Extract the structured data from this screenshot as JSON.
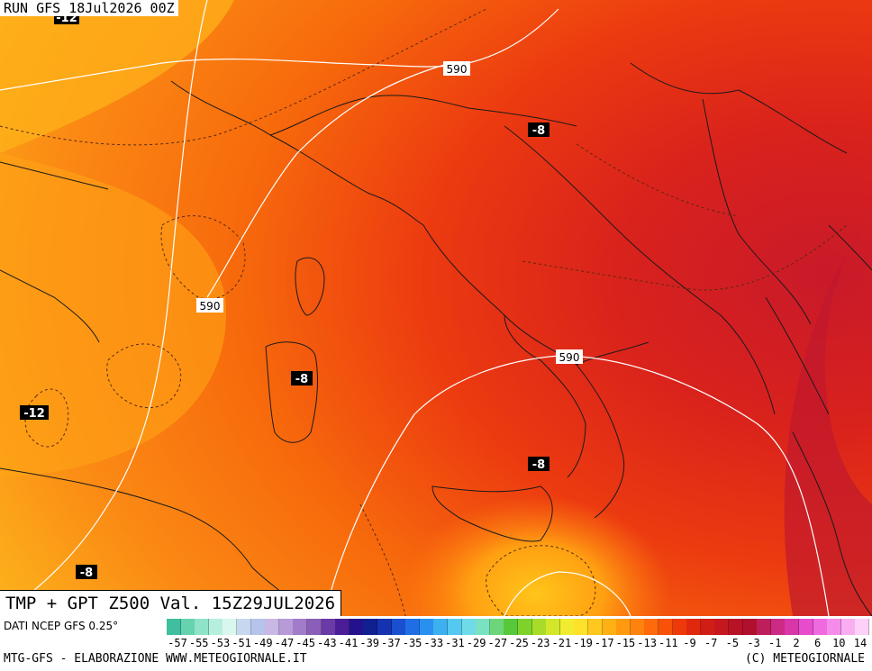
{
  "header": {
    "run_text": "RUN GFS 18Jul2026 00Z"
  },
  "title": {
    "valid_text": "TMP + GPT Z500 Val. 15Z29JUL2026"
  },
  "source": {
    "text": "DATI NCEP GFS 0.25°"
  },
  "footer": {
    "left": "MTG-GFS - ELABORAZIONE WWW.METEOGIORNALE.IT",
    "right": "(C) METEOGIORNALE"
  },
  "map_labels": {
    "geopotential": [
      {
        "text": "590",
        "place": "north-near-austria"
      },
      {
        "text": "590",
        "place": "west-sea"
      },
      {
        "text": "590",
        "place": "southern-italy"
      }
    ],
    "temperature": [
      {
        "text": "-12",
        "place": "top-left-corner"
      },
      {
        "text": "-8",
        "place": "croatian-coast"
      },
      {
        "text": "-8",
        "place": "sardinia"
      },
      {
        "text": "-12",
        "place": "algeria-coast"
      },
      {
        "text": "-8",
        "place": "sicily"
      },
      {
        "text": "-8",
        "place": "tunisia"
      }
    ]
  },
  "legend": {
    "ticks": [
      "-57",
      "-55",
      "-53",
      "-51",
      "-49",
      "-47",
      "-45",
      "-43",
      "-41",
      "-39",
      "-37",
      "-35",
      "-33",
      "-31",
      "-29",
      "-27",
      "-25",
      "-23",
      "-21",
      "-19",
      "-17",
      "-15",
      "-13",
      "-11",
      "-9",
      "-7",
      "-5",
      "-3",
      "-1",
      "2",
      "6",
      "10",
      "14"
    ],
    "colors": [
      "#3fbf9f",
      "#66d3b0",
      "#8fe3c9",
      "#b7efdf",
      "#d9f7ee",
      "#c8d7f0",
      "#b6c3ea",
      "#c9b8e6",
      "#b79ad8",
      "#a27cc8",
      "#8b5eb8",
      "#6a3aa6",
      "#4a1e96",
      "#24128c",
      "#10208f",
      "#1533b0",
      "#1a4fd0",
      "#1f6ee6",
      "#2a90f0",
      "#3cb0f0",
      "#55c8ef",
      "#6fdbe8",
      "#7ae2c0",
      "#6ed67a",
      "#57c83a",
      "#7fd22a",
      "#a9dc2a",
      "#d2e62a",
      "#f2ec30",
      "#ffe02a",
      "#ffc81e",
      "#ffb014",
      "#ff9a10",
      "#ff820c",
      "#ff6a0a",
      "#f75208",
      "#ee3a0a",
      "#e0280e",
      "#d01e16",
      "#c4181e",
      "#b81226",
      "#b0102e",
      "#bd1f5a",
      "#cc2a84",
      "#d936aa",
      "#e64ccc",
      "#ef6adf",
      "#f58cea",
      "#f9aef1",
      "#fcd0f7"
    ]
  }
}
